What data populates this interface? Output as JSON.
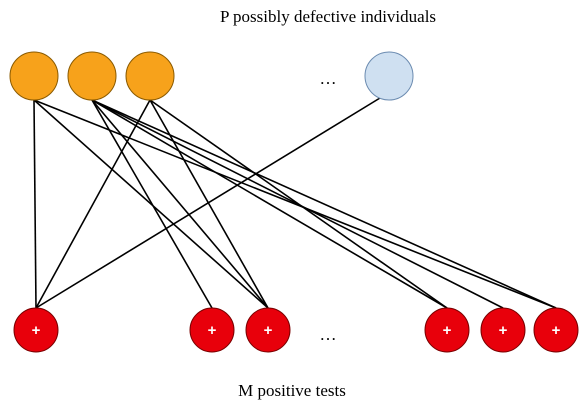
{
  "title": "P possibly defective individuals",
  "top_ellipsis": "…",
  "bottom_ellipsis": "…",
  "tests": [
    "+",
    "+",
    "+",
    "+",
    "+",
    "+"
  ],
  "footer": "M positive tests"
}
